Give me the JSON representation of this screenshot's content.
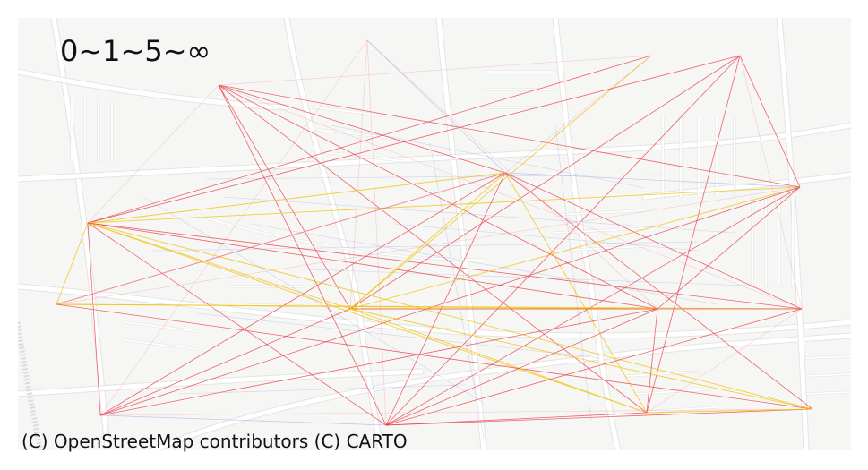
{
  "legend_label": "0~1~5~∞",
  "attribution": "(C) OpenStreetMap contributors (C) CARTO",
  "colors": {
    "basemap": "#f5f5f4",
    "roads": "#ffffff",
    "road_edges": "#e4e4e4",
    "flow_high": "#e8333d",
    "flow_mid": "#f1c40f",
    "flow_low": "#7f86d8",
    "flow_faint": "#f3a6b6"
  },
  "basemap": "light grey street map (CARTO light)",
  "nodes": [
    {
      "id": "n1"
    },
    {
      "id": "n2"
    },
    {
      "id": "n3"
    },
    {
      "id": "n4"
    },
    {
      "id": "n5"
    },
    {
      "id": "n6"
    },
    {
      "id": "n7"
    },
    {
      "id": "n8"
    },
    {
      "id": "n9"
    },
    {
      "id": "n10"
    },
    {
      "id": "n11"
    },
    {
      "id": "n12"
    },
    {
      "id": "n13"
    },
    {
      "id": "n14"
    },
    {
      "id": "n15"
    }
  ]
}
